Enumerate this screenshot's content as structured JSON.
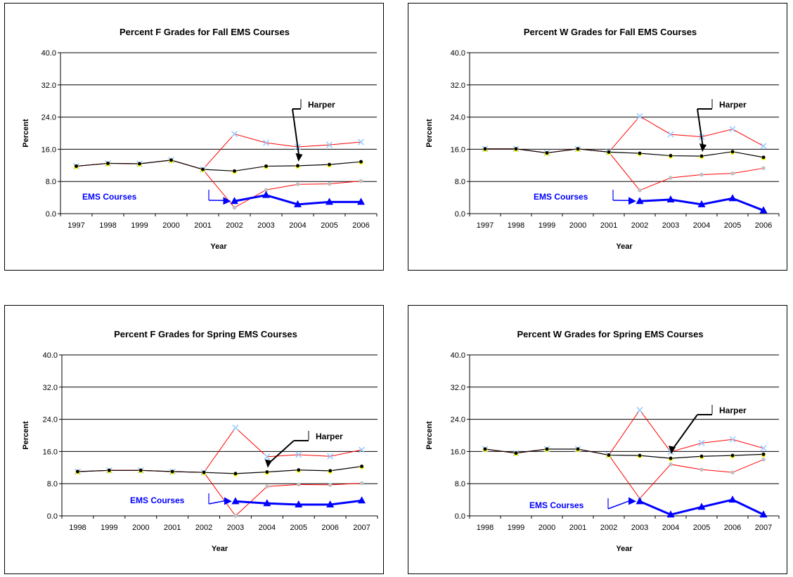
{
  "colors": {
    "harper": "#000000",
    "ems": "#0000FF",
    "band": "#FF0000",
    "upper_marker": "#99CCFF",
    "lower_marker": "#C0C0C0",
    "harper_marker_fill": "#FFFF00"
  },
  "chart_data": [
    {
      "type": "line",
      "title": "Percent F Grades for Fall EMS Courses",
      "xlabel": "Year",
      "ylabel": "Percent",
      "ylim": [
        0,
        40
      ],
      "yticks": [
        "0.0",
        "8.0",
        "16.0",
        "24.0",
        "32.0",
        "40.0"
      ],
      "categories": [
        "1997",
        "1998",
        "1999",
        "2000",
        "2001",
        "2002",
        "2003",
        "2004",
        "2005",
        "2006"
      ],
      "grid": true,
      "series": [
        {
          "role": "upper",
          "values": [
            11.8,
            12.5,
            12.4,
            13.3,
            11.0,
            19.8,
            17.6,
            16.6,
            17.1,
            17.8
          ]
        },
        {
          "role": "lower",
          "values": [
            11.8,
            12.5,
            12.4,
            13.3,
            11.0,
            1.5,
            5.9,
            7.3,
            7.4,
            8.1
          ]
        },
        {
          "role": "harper",
          "values": [
            11.8,
            12.5,
            12.4,
            13.3,
            11.0,
            10.6,
            11.8,
            11.9,
            12.2,
            12.9
          ]
        },
        {
          "role": "ems",
          "values": [
            null,
            null,
            null,
            null,
            null,
            3.1,
            4.6,
            2.3,
            2.9,
            2.9
          ]
        }
      ],
      "annotations": [
        {
          "text": "Harper",
          "target_series": "harper",
          "target_category": "2004"
        },
        {
          "text": "EMS Courses",
          "target_series": "ems",
          "target_category": "2002"
        }
      ]
    },
    {
      "type": "line",
      "title": "Percent W Grades for Fall EMS Courses",
      "xlabel": "Year",
      "ylabel": "Percent",
      "ylim": [
        0,
        40
      ],
      "yticks": [
        "0.0",
        "8.0",
        "16.0",
        "24.0",
        "32.0",
        "40.0"
      ],
      "categories": [
        "1997",
        "1998",
        "1999",
        "2000",
        "2001",
        "2002",
        "2003",
        "2004",
        "2005",
        "2006"
      ],
      "grid": true,
      "series": [
        {
          "role": "upper",
          "values": [
            16.1,
            16.1,
            15.1,
            16.1,
            15.3,
            24.2,
            19.7,
            19.1,
            21.0,
            16.8
          ]
        },
        {
          "role": "lower",
          "values": [
            16.1,
            16.1,
            15.1,
            16.1,
            15.3,
            5.8,
            8.9,
            9.7,
            10.0,
            11.3
          ]
        },
        {
          "role": "harper",
          "values": [
            16.1,
            16.1,
            15.1,
            16.1,
            15.3,
            15.0,
            14.4,
            14.3,
            15.4,
            14.0
          ]
        },
        {
          "role": "ems",
          "values": [
            null,
            null,
            null,
            null,
            null,
            3.1,
            3.5,
            2.3,
            3.8,
            0.8
          ]
        }
      ],
      "annotations": [
        {
          "text": "Harper",
          "target_series": "harper",
          "target_category": "2004"
        },
        {
          "text": "EMS Courses",
          "target_series": "ems",
          "target_category": "2002"
        }
      ]
    },
    {
      "type": "line",
      "title": "Percent F Grades for Spring EMS Courses",
      "xlabel": "Year",
      "ylabel": "Percent",
      "ylim": [
        0,
        40
      ],
      "yticks": [
        "0.0",
        "8.0",
        "16.0",
        "24.0",
        "32.0",
        "40.0"
      ],
      "categories": [
        "1998",
        "1999",
        "2000",
        "2001",
        "2002",
        "2003",
        "2004",
        "2005",
        "2006",
        "2007"
      ],
      "grid": true,
      "series": [
        {
          "role": "upper",
          "values": [
            11.0,
            11.3,
            11.3,
            11.0,
            10.8,
            21.9,
            14.7,
            15.2,
            14.8,
            16.4
          ]
        },
        {
          "role": "lower",
          "values": [
            11.0,
            11.3,
            11.3,
            11.0,
            10.8,
            0.0,
            7.3,
            7.8,
            7.7,
            8.1
          ]
        },
        {
          "role": "harper",
          "values": [
            11.0,
            11.3,
            11.3,
            11.0,
            10.8,
            10.5,
            10.9,
            11.4,
            11.2,
            12.3
          ]
        },
        {
          "role": "ems",
          "values": [
            null,
            null,
            null,
            null,
            null,
            3.6,
            3.1,
            2.8,
            2.8,
            3.8
          ]
        }
      ],
      "annotations": [
        {
          "text": "Harper",
          "target_series": "harper",
          "target_category": "2004"
        },
        {
          "text": "EMS Courses",
          "target_series": "ems",
          "target_category": "2003"
        }
      ]
    },
    {
      "type": "line",
      "title": "Percent W Grades for Spring EMS Courses",
      "xlabel": "Year",
      "ylabel": "Percent",
      "ylim": [
        0,
        40
      ],
      "yticks": [
        "0.0",
        "8.0",
        "16.0",
        "24.0",
        "32.0",
        "40.0"
      ],
      "categories": [
        "1998",
        "1999",
        "2000",
        "2001",
        "2002",
        "2003",
        "2004",
        "2005",
        "2006",
        "2007"
      ],
      "grid": true,
      "series": [
        {
          "role": "upper",
          "values": [
            16.6,
            15.6,
            16.6,
            16.6,
            15.1,
            26.3,
            15.9,
            18.1,
            19.0,
            16.8
          ]
        },
        {
          "role": "lower",
          "values": [
            16.6,
            15.6,
            16.6,
            16.6,
            15.1,
            4.3,
            12.8,
            11.5,
            10.8,
            14.0
          ]
        },
        {
          "role": "harper",
          "values": [
            16.6,
            15.6,
            16.6,
            16.6,
            15.1,
            15.0,
            14.3,
            14.8,
            15.0,
            15.3
          ]
        },
        {
          "role": "ems",
          "values": [
            null,
            null,
            null,
            null,
            null,
            3.6,
            0.3,
            2.2,
            4.0,
            0.3
          ]
        }
      ],
      "annotations": [
        {
          "text": "Harper",
          "target_series": "harper",
          "target_category": "2004"
        },
        {
          "text": "EMS Courses",
          "target_series": "ems",
          "target_category": "2003"
        }
      ]
    }
  ]
}
